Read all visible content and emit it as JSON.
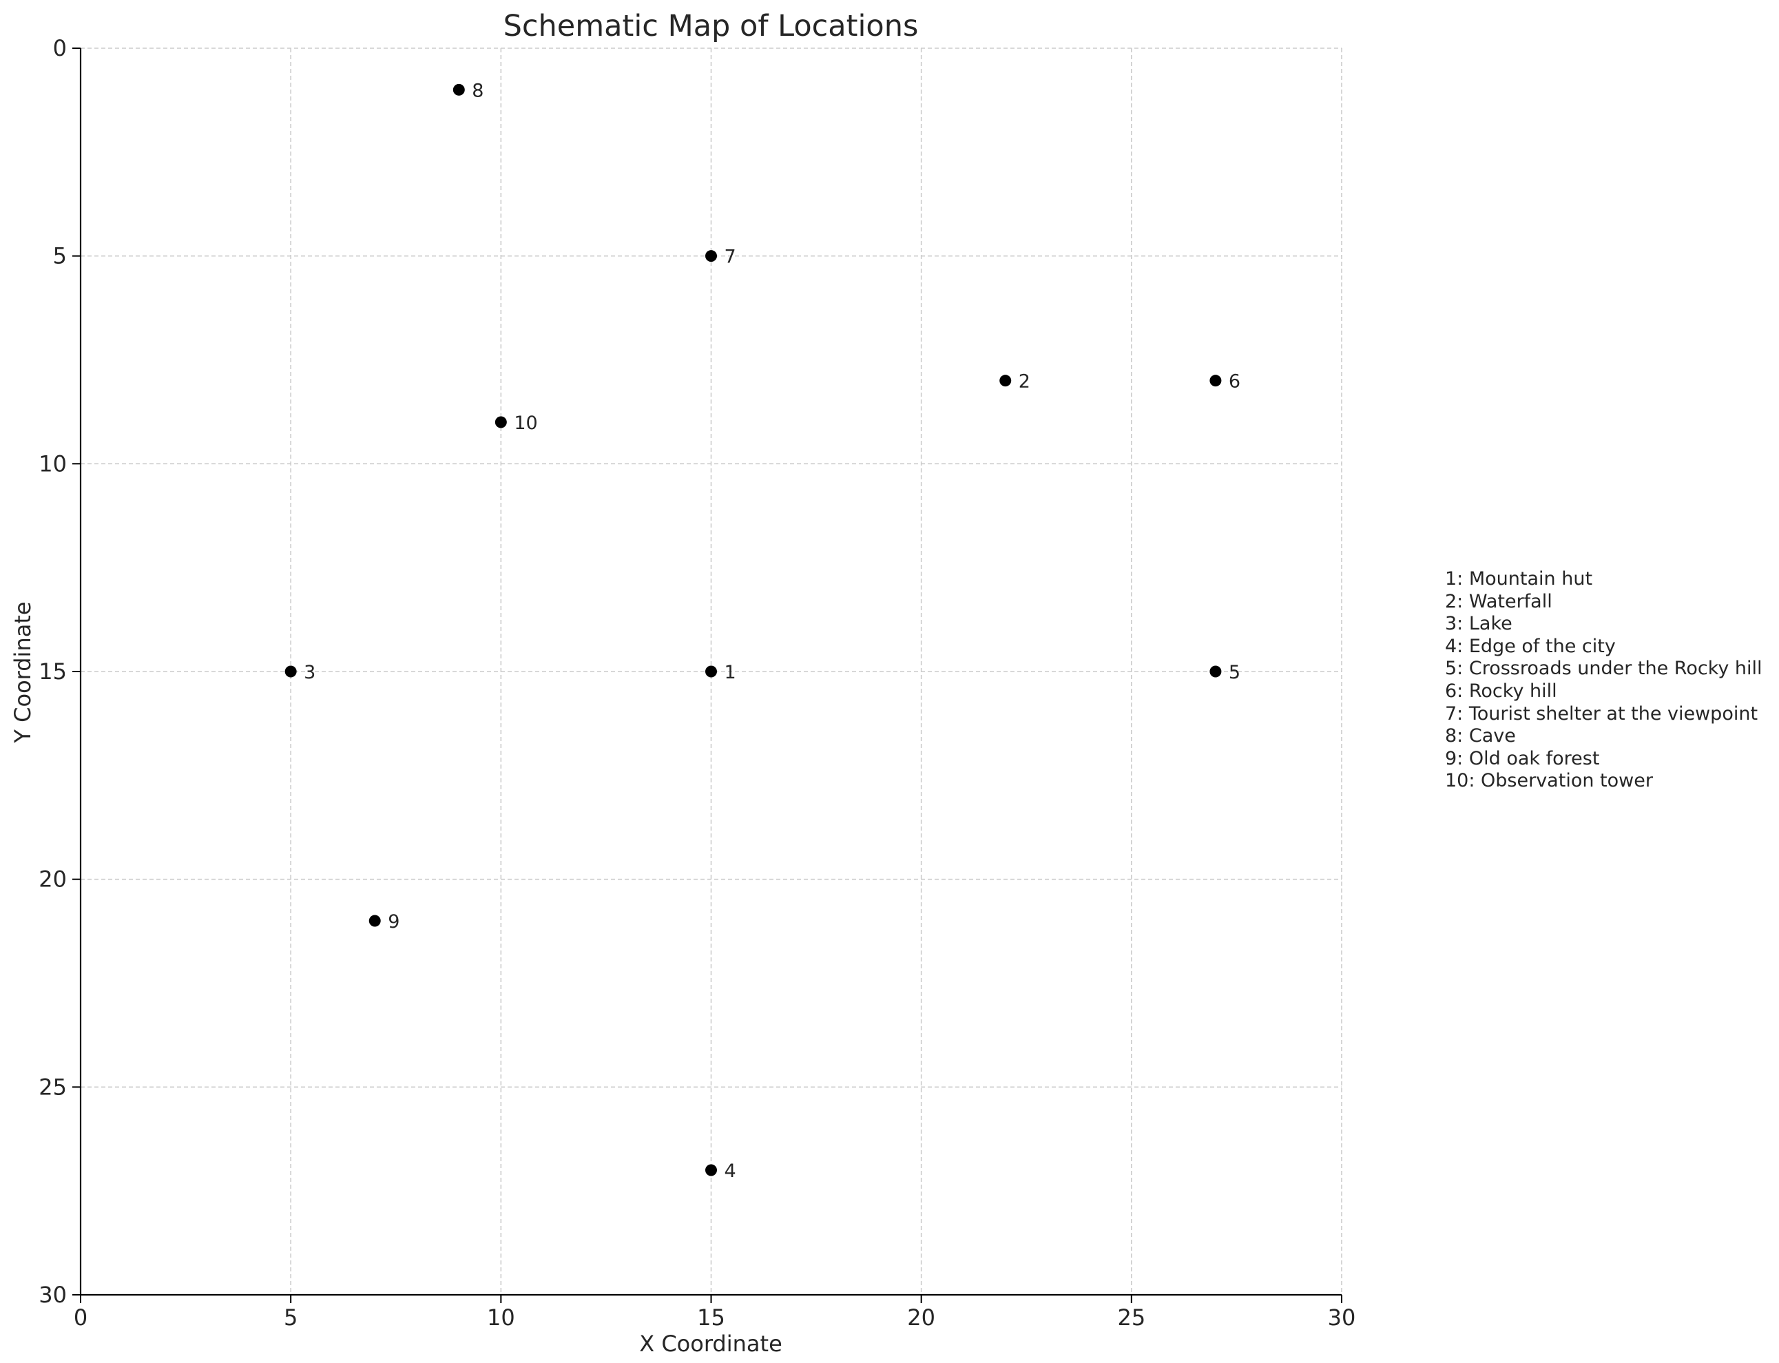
{
  "chart_data": {
    "type": "scatter",
    "title": "Schematic Map of Locations",
    "xlabel": "X Coordinate",
    "ylabel": "Y Coordinate",
    "xlim": [
      0,
      30
    ],
    "ylim": [
      0,
      30
    ],
    "y_inverted": true,
    "grid": true,
    "xticks": [
      0,
      5,
      10,
      15,
      20,
      25,
      30
    ],
    "yticks": [
      0,
      5,
      10,
      15,
      20,
      25,
      30
    ],
    "marker_color": "#000000",
    "grid_color": "#cccccc",
    "points": [
      {
        "label": "1",
        "x": 15,
        "y": 15
      },
      {
        "label": "2",
        "x": 22,
        "y": 8
      },
      {
        "label": "3",
        "x": 5,
        "y": 15
      },
      {
        "label": "4",
        "x": 15,
        "y": 27
      },
      {
        "label": "5",
        "x": 27,
        "y": 15
      },
      {
        "label": "6",
        "x": 27,
        "y": 8
      },
      {
        "label": "7",
        "x": 15,
        "y": 5
      },
      {
        "label": "8",
        "x": 9,
        "y": 1
      },
      {
        "label": "9",
        "x": 7,
        "y": 21
      },
      {
        "label": "10",
        "x": 10,
        "y": 9
      }
    ],
    "legend_placement": "right",
    "legend_entries": [
      "1: Mountain hut",
      "2: Waterfall",
      "3: Lake",
      "4: Edge of the city",
      "5: Crossroads under the Rocky hill",
      "6: Rocky hill",
      "7: Tourist shelter at the viewpoint",
      "8: Cave",
      "9: Old oak forest",
      "10: Observation tower"
    ]
  }
}
